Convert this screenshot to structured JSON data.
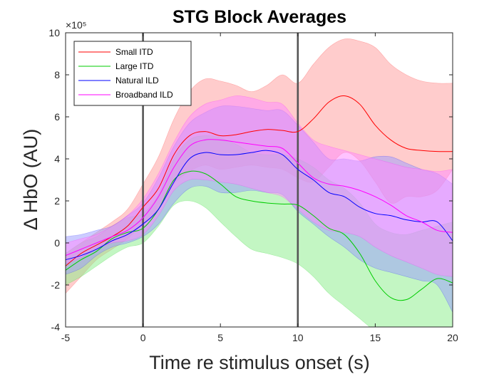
{
  "chart_data": {
    "type": "line",
    "title": "STG Block Averages",
    "xlabel": "Time re stimulus onset (s)",
    "ylabel": "Δ HbO (AU)",
    "y_exponent_label": "×10⁵",
    "xlim": [
      -5,
      20
    ],
    "ylim": [
      -4,
      10
    ],
    "xticks": [
      -5,
      0,
      5,
      10,
      15,
      20
    ],
    "yticks": [
      -4,
      -2,
      0,
      2,
      4,
      6,
      8,
      10
    ],
    "xtick_labels": [
      "-5",
      "0",
      "5",
      "10",
      "15",
      "20"
    ],
    "ytick_labels": [
      "-4",
      "-2",
      "0",
      "2",
      "4",
      "6",
      "8",
      "10"
    ],
    "vlines": [
      0,
      10
    ],
    "grid": false,
    "legend_position": "top-left",
    "x": [
      -5,
      -4,
      -3,
      -2,
      -1,
      0,
      1,
      2,
      3,
      4,
      5,
      6,
      7,
      8,
      9,
      10,
      11,
      12,
      13,
      14,
      15,
      16,
      17,
      18,
      19,
      20
    ],
    "series": [
      {
        "name": "Small ITD",
        "color": "#ff0000",
        "fill": "#ff9999",
        "mean": [
          -1.1,
          -0.5,
          -0.1,
          0.3,
          0.8,
          1.7,
          2.6,
          4.2,
          5.1,
          5.3,
          5.1,
          5.15,
          5.3,
          5.4,
          5.35,
          5.3,
          5.9,
          6.7,
          7.0,
          6.6,
          5.6,
          4.9,
          4.5,
          4.4,
          4.35,
          4.35
        ],
        "upper": [
          -0.5,
          0.0,
          0.5,
          1.0,
          1.6,
          2.8,
          4.1,
          5.9,
          7.2,
          7.8,
          7.7,
          7.5,
          7.2,
          7.5,
          8.0,
          7.6,
          8.5,
          9.3,
          9.7,
          9.6,
          9.3,
          8.5,
          8.0,
          7.7,
          7.6,
          7.6
        ],
        "lower": [
          -2.4,
          -1.6,
          -0.8,
          -0.3,
          0.2,
          0.9,
          1.6,
          2.8,
          3.4,
          3.7,
          3.5,
          3.6,
          3.7,
          3.6,
          3.5,
          3.1,
          2.9,
          3.6,
          4.3,
          3.9,
          2.9,
          1.9,
          2.2,
          2.2,
          2.5,
          3.5
        ]
      },
      {
        "name": "Large ITD",
        "color": "#00cc00",
        "fill": "#88ee88",
        "mean": [
          -1.3,
          -0.8,
          -0.4,
          0.2,
          0.5,
          0.7,
          1.6,
          3.0,
          3.4,
          3.3,
          2.8,
          2.2,
          2.0,
          1.9,
          1.85,
          1.8,
          1.3,
          0.7,
          0.4,
          -0.5,
          -1.8,
          -2.6,
          -2.7,
          -2.2,
          -1.7,
          -1.9
        ],
        "upper": [
          -0.5,
          0.0,
          0.3,
          0.8,
          1.2,
          1.4,
          2.3,
          4.0,
          4.9,
          5.1,
          5.0,
          4.7,
          4.3,
          4.2,
          4.2,
          4.0,
          3.6,
          3.0,
          2.6,
          1.9,
          0.9,
          0.5,
          0.4,
          0.6,
          0.8,
          1.0
        ],
        "lower": [
          -2.0,
          -1.6,
          -1.1,
          -0.6,
          -0.2,
          0.0,
          0.8,
          1.8,
          2.0,
          1.7,
          1.0,
          0.3,
          -0.3,
          -0.5,
          -0.7,
          -1.0,
          -1.6,
          -2.4,
          -3.0,
          -3.6,
          -4.2,
          -4.6,
          -4.5,
          -4.2,
          -4.1,
          -4.3
        ]
      },
      {
        "name": "Natural ILD",
        "color": "#0000ff",
        "fill": "#9999ff",
        "mean": [
          -0.8,
          -0.6,
          -0.3,
          0.1,
          0.4,
          0.9,
          1.6,
          2.9,
          4.0,
          4.3,
          4.2,
          4.2,
          4.3,
          4.4,
          4.2,
          3.5,
          3.0,
          2.4,
          2.2,
          1.7,
          1.4,
          1.3,
          1.1,
          1.0,
          1.0,
          0.1
        ],
        "upper": [
          0.3,
          0.4,
          0.6,
          0.8,
          1.3,
          1.9,
          3.1,
          4.6,
          5.7,
          6.2,
          6.5,
          6.5,
          6.4,
          6.3,
          6.3,
          5.6,
          4.8,
          4.0,
          4.0,
          3.9,
          4.1,
          4.1,
          3.8,
          3.5,
          3.3,
          2.8
        ],
        "lower": [
          -1.5,
          -1.2,
          -0.6,
          -0.2,
          0.0,
          0.3,
          0.9,
          1.9,
          2.6,
          2.7,
          2.4,
          2.4,
          2.5,
          2.4,
          2.3,
          1.5,
          0.9,
          0.3,
          -0.2,
          -0.8,
          -1.2,
          -1.4,
          -1.6,
          -1.8,
          -2.0,
          -3.3
        ]
      },
      {
        "name": "Broadband ILD",
        "color": "#ff00ff",
        "fill": "#ff88ff",
        "mean": [
          -0.6,
          -0.3,
          0.0,
          0.3,
          0.6,
          1.2,
          2.2,
          3.6,
          4.6,
          4.9,
          4.9,
          4.8,
          4.7,
          4.6,
          4.5,
          3.8,
          3.1,
          2.8,
          2.7,
          2.5,
          2.2,
          1.8,
          1.3,
          1.0,
          0.6,
          0.5
        ],
        "upper": [
          0.0,
          0.2,
          0.4,
          0.8,
          1.3,
          2.1,
          3.3,
          4.8,
          6.0,
          6.6,
          6.8,
          7.0,
          6.9,
          6.7,
          6.6,
          5.7,
          4.9,
          4.6,
          4.4,
          4.2,
          4.0,
          3.8,
          3.6,
          3.5,
          3.4,
          3.5
        ],
        "lower": [
          -1.0,
          -0.7,
          -0.3,
          0.0,
          0.1,
          0.4,
          1.3,
          2.5,
          3.0,
          3.0,
          2.9,
          2.8,
          2.6,
          2.4,
          2.2,
          1.6,
          1.0,
          0.6,
          0.5,
          0.3,
          -0.2,
          -0.6,
          -0.9,
          -1.2,
          -1.5,
          -1.6
        ]
      }
    ]
  }
}
